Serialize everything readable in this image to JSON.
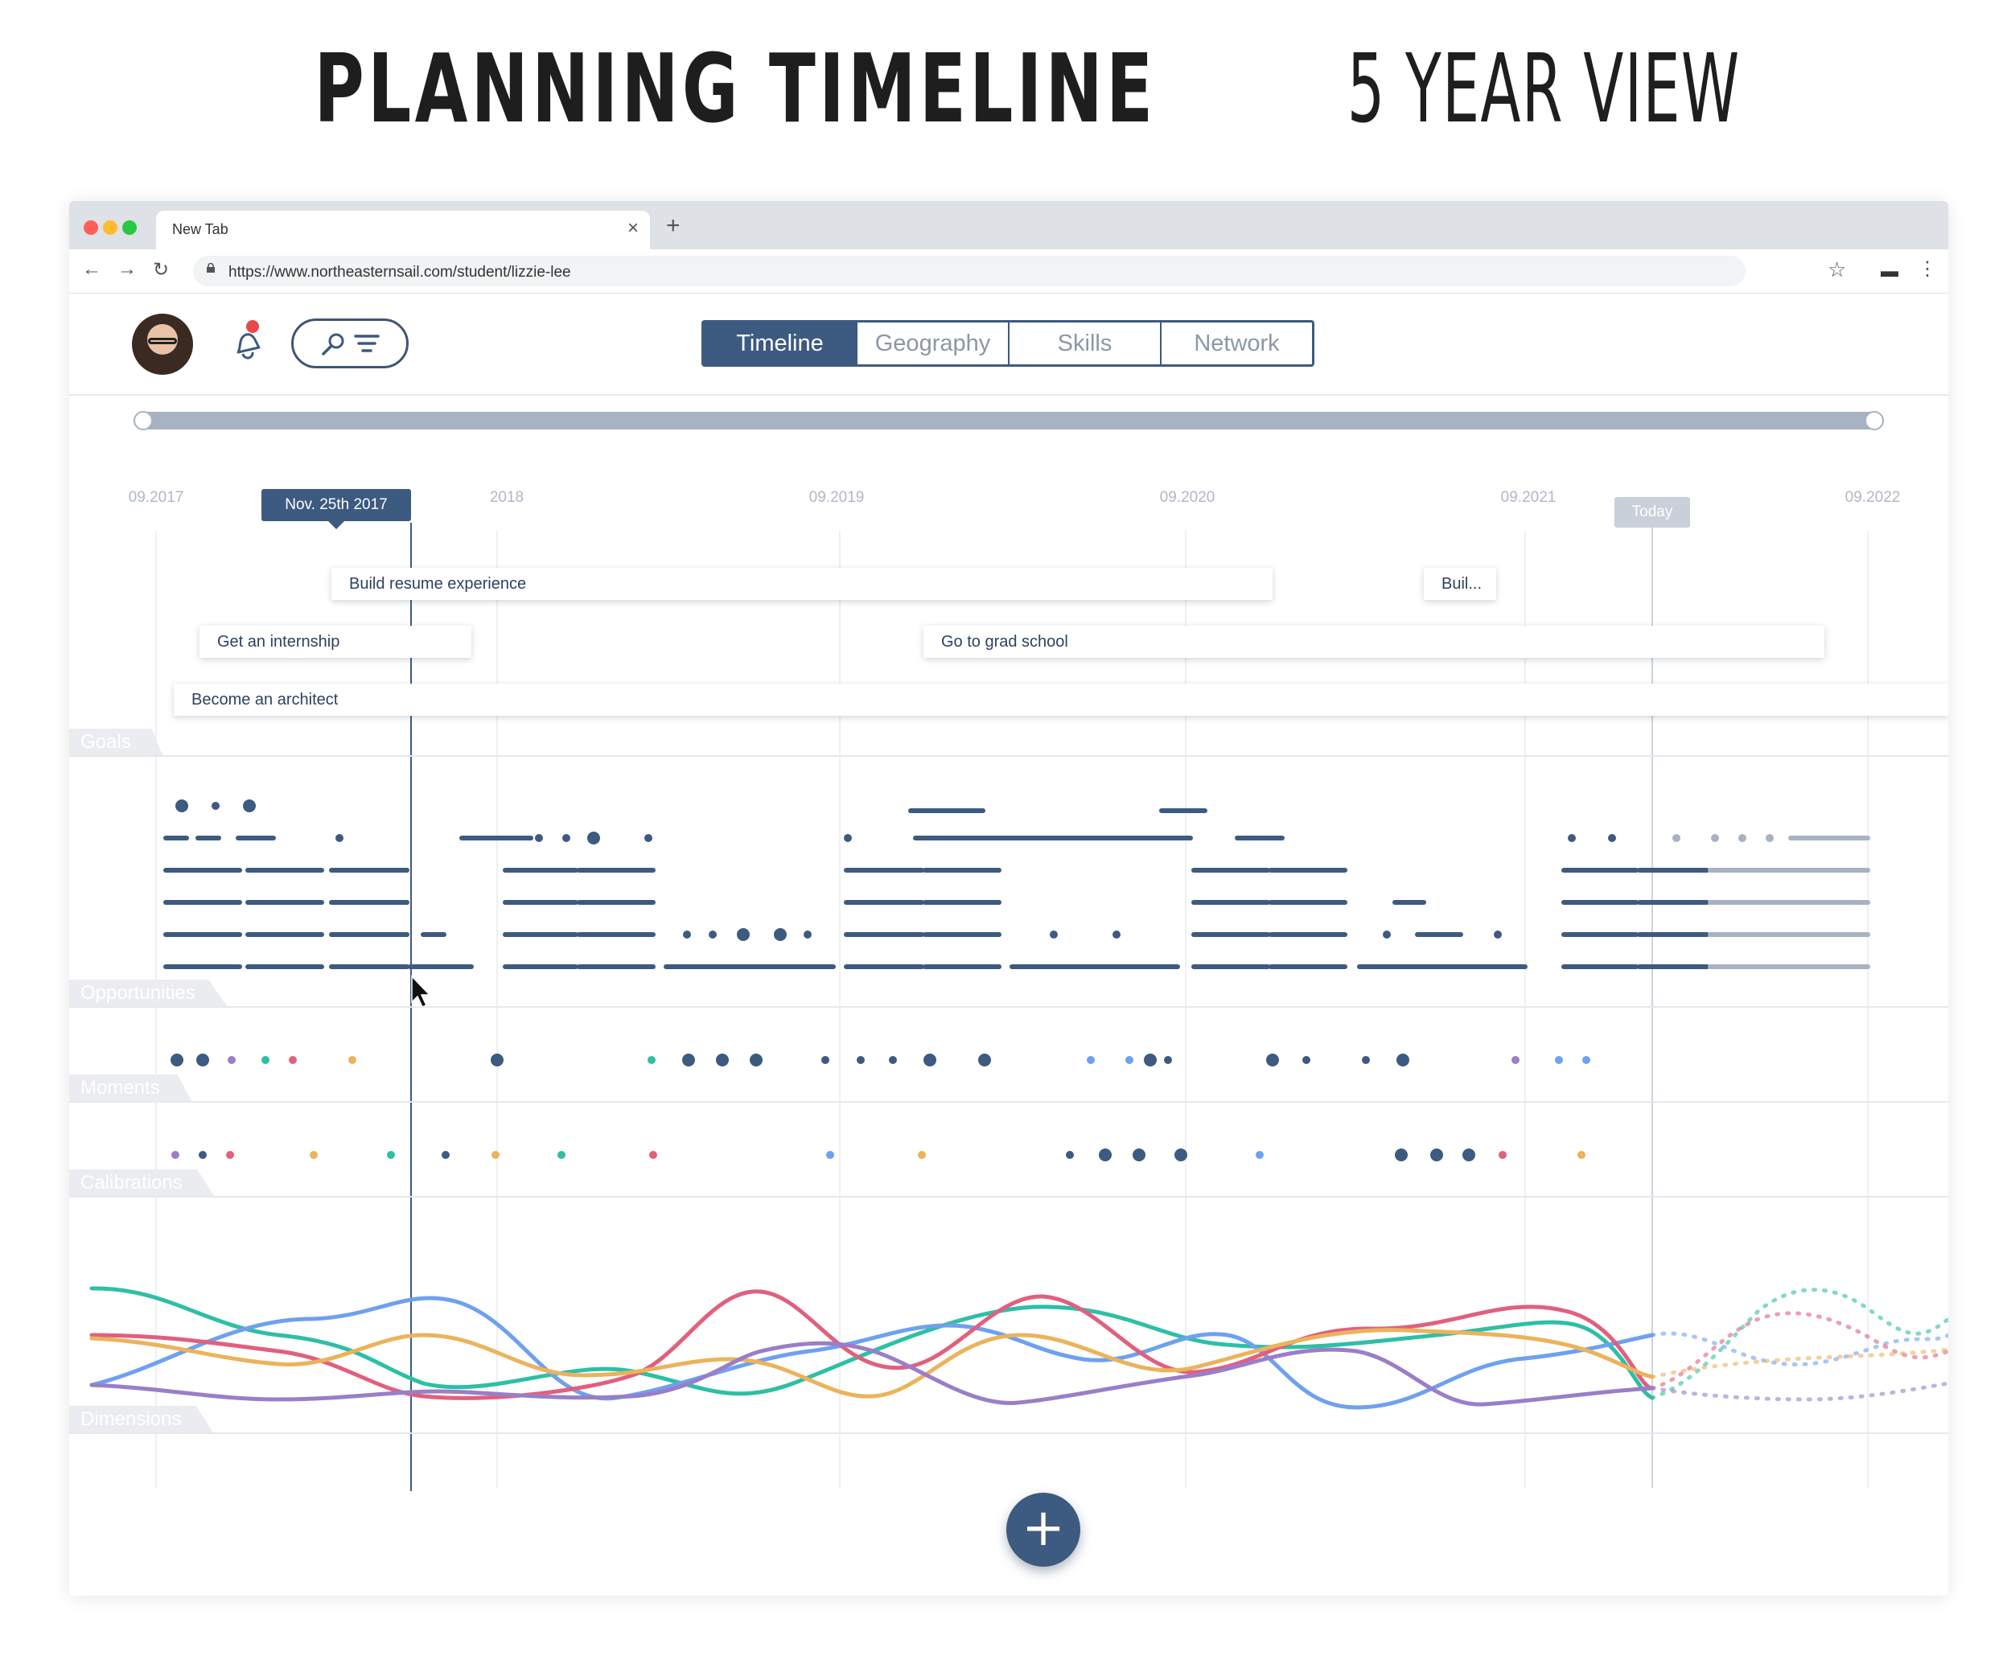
{
  "hero": {
    "title_bold": "PLANNING TIMELINE",
    "title_light": "5 YEAR VIEW"
  },
  "browser": {
    "tab_title": "New Tab",
    "url": "https://www.northeasternsail.com/student/lizzie-lee"
  },
  "app": {
    "view_tabs": [
      "Timeline",
      "Geography",
      "Skills",
      "Network"
    ],
    "active_tab": "Timeline",
    "years": [
      "09.2017",
      "2018",
      "09.2019",
      "09.2020",
      "09.2021",
      "09.2022"
    ],
    "selected_date": "Nov. 25th 2017",
    "today_label": "Today",
    "goals": [
      {
        "label": "Build resume experience"
      },
      {
        "label": "Buil..."
      },
      {
        "label": "Get an internship"
      },
      {
        "label": "Go to grad school"
      },
      {
        "label": "Become an architect"
      }
    ],
    "sections": [
      "Goals",
      "Opportunities",
      "Moments",
      "Calibrations",
      "Dimensions"
    ],
    "add_button": "+"
  },
  "colors": {
    "navy": "#3d5a80",
    "blue": "#6ea1ef",
    "teal": "#2ebfa5",
    "pink": "#e0607e",
    "orange": "#ebb35c",
    "purple": "#9a7ec8"
  }
}
